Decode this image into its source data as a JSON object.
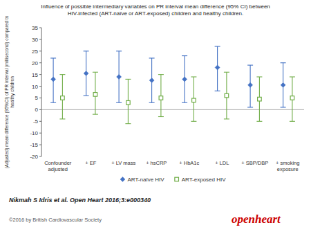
{
  "chart_data": {
    "type": "errorbar",
    "title": "Influence of possible intermediary variables on PR interval mean difference (95% CI) between\nHIV-infected (ART-naïve or ART-exposed) children and healthy children.",
    "y_label": "(Adjusted) mean difference (95%CI) of PR interval (millisecond) compared to\nhealthy children",
    "categories": [
      "Confounder\nadjusted",
      "+ EF",
      "+ LV mass",
      "+ hsCRP",
      "+ HbA1c",
      "+ LDL",
      "+ SBP/DBP",
      "+ smoking\nexposure"
    ],
    "series": [
      {
        "name": "ART-naïve HIV",
        "color": "#4472C4",
        "marker": "diamond",
        "values": [
          13,
          15.5,
          14,
          12.5,
          13,
          18,
          10.5,
          10.5
        ],
        "lower": [
          3,
          6,
          3,
          3,
          3,
          8,
          1,
          1
        ],
        "upper": [
          22,
          25,
          25,
          22,
          23,
          27,
          19,
          20
        ]
      },
      {
        "name": "ART-exposed HIV",
        "color": "#70AD47",
        "marker": "square-open",
        "values": [
          5,
          6.5,
          3,
          5,
          4,
          6,
          4.5,
          5
        ],
        "lower": [
          -4,
          -2,
          -6,
          -3,
          -5,
          -4,
          -5,
          -5
        ],
        "upper": [
          15,
          16,
          13,
          15,
          14,
          16,
          14,
          14
        ]
      }
    ],
    "ylim": [
      -20,
      35
    ],
    "yticks": [
      -20,
      -15,
      -10,
      -5,
      0,
      5,
      10,
      15,
      20,
      25,
      30,
      35
    ],
    "grid": false,
    "legend": "bottom",
    "annotations": [
      {
        "text": "Nikmah S Idris et al. Open Heart 2016;3:e000340"
      },
      {
        "text": "©2016 by British Cardiovascular Society",
        "color": "#555555"
      },
      {
        "text": "openheart",
        "color": "#CC0000"
      }
    ]
  }
}
